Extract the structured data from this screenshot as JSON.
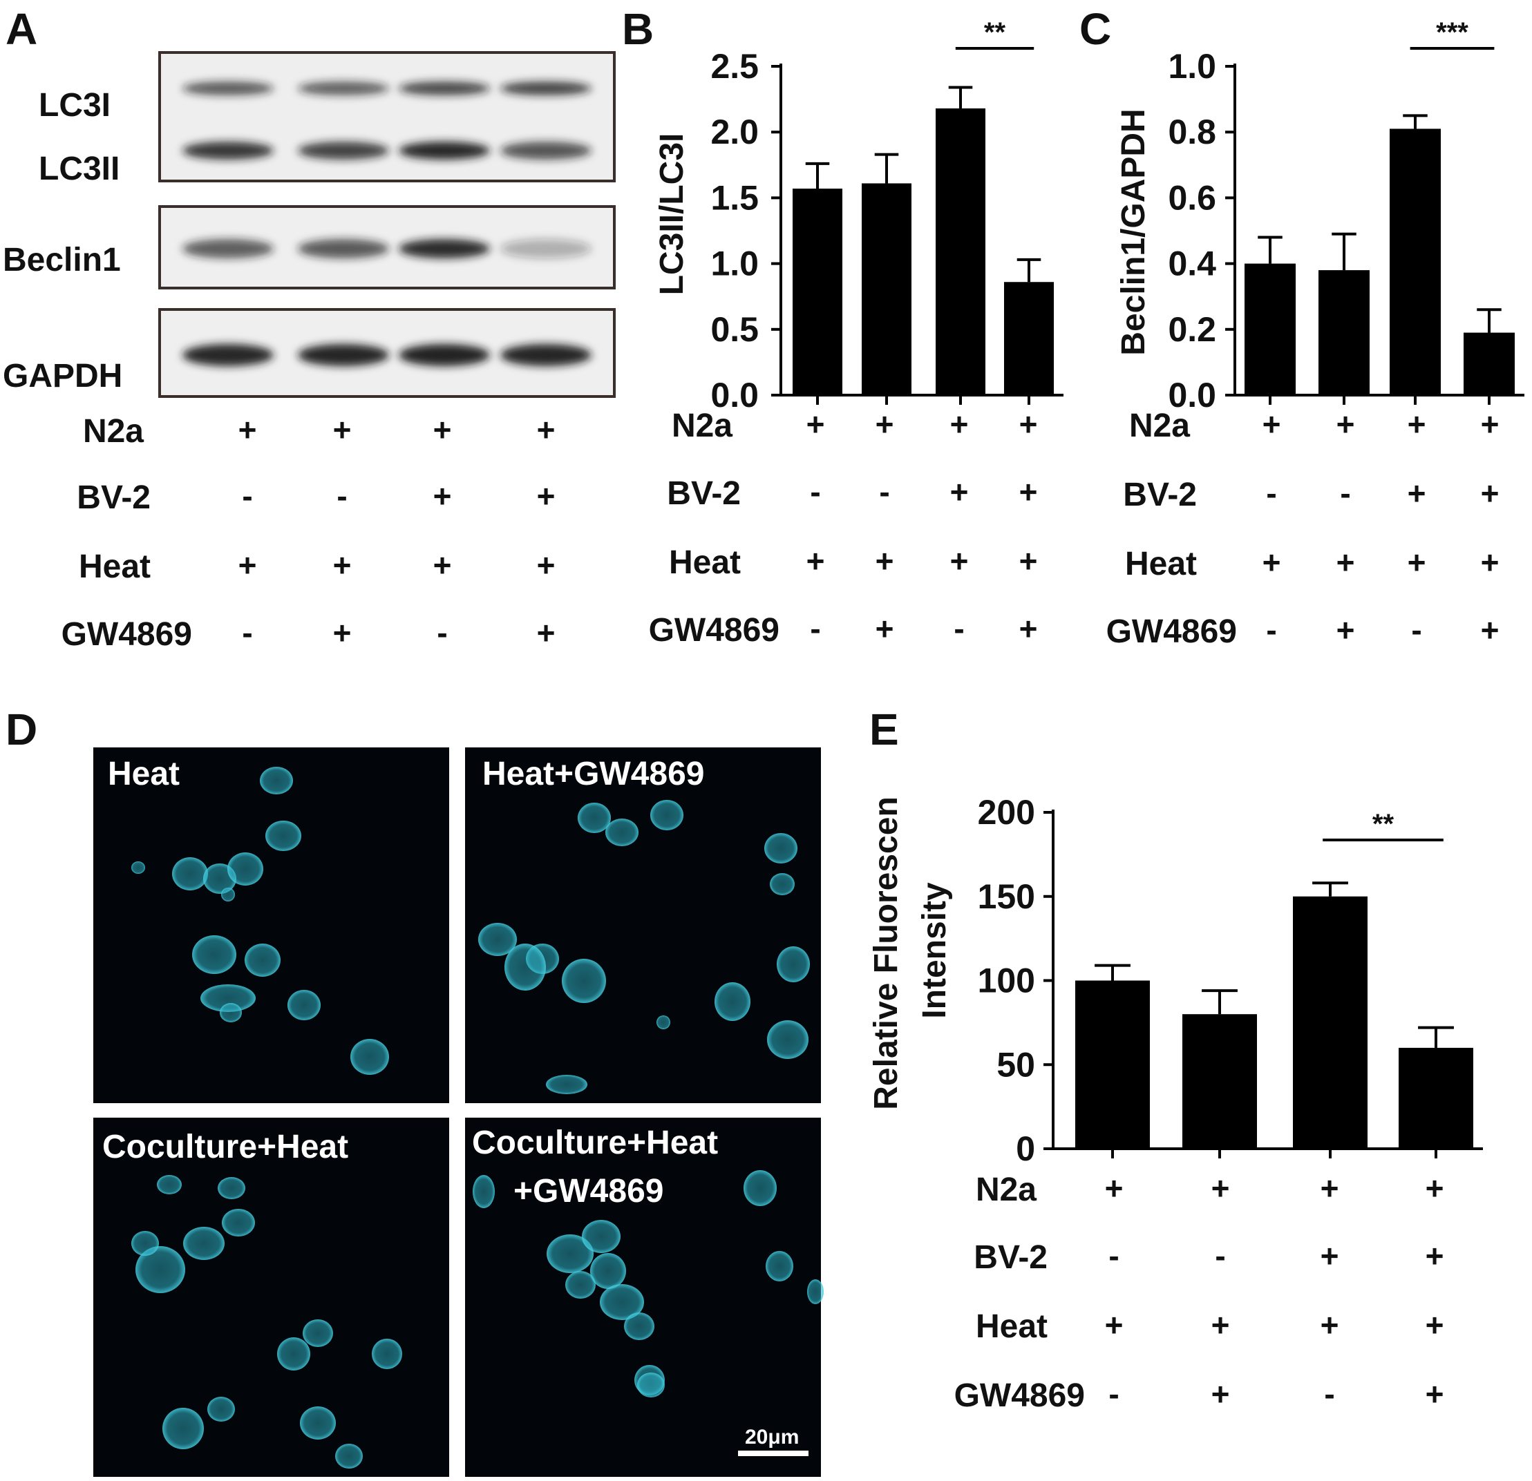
{
  "panels": {
    "A": {
      "label": "A",
      "blot_labels": [
        "LC3I",
        "LC3II",
        "Beclin1",
        "GAPDH"
      ],
      "band_intensity": {
        "LC3I": [
          0.7,
          0.68,
          0.78,
          0.8
        ],
        "LC3II": [
          0.85,
          0.8,
          0.95,
          0.72
        ],
        "Beclin1": [
          0.68,
          0.7,
          0.9,
          0.3
        ],
        "GAPDH": [
          0.95,
          0.93,
          0.94,
          0.93
        ]
      }
    },
    "B": {
      "label": "B"
    },
    "C": {
      "label": "C"
    },
    "D": {
      "label": "D",
      "images": [
        {
          "title": "Heat"
        },
        {
          "title": "Heat+GW4869"
        },
        {
          "title": "Coculture+Heat"
        },
        {
          "title": "Coculture+Heat",
          "title2": "+GW4869"
        }
      ],
      "scale_bar": "20μm"
    },
    "E": {
      "label": "E"
    }
  },
  "conditions": [
    {
      "name": "N2a",
      "signs": [
        "+",
        "+",
        "+",
        "+"
      ]
    },
    {
      "name": "BV-2",
      "signs": [
        "-",
        "-",
        "+",
        "+"
      ]
    },
    {
      "name": "Heat",
      "signs": [
        "+",
        "+",
        "+",
        "+"
      ]
    },
    {
      "name": "GW4869",
      "signs": [
        "-",
        "+",
        "-",
        "+"
      ]
    }
  ],
  "colors": {
    "bar": "#000000",
    "cell": "#2fb4c8",
    "micro_bg": "#02060a"
  },
  "chart_data": [
    {
      "panel": "B",
      "type": "bar",
      "ylabel": "LC3II/LC3I",
      "ylim": [
        0,
        2.5
      ],
      "yticks": [
        "0.0",
        "0.5",
        "1.0",
        "1.5",
        "2.0",
        "2.5"
      ],
      "values": [
        1.57,
        1.61,
        2.18,
        0.86
      ],
      "errors": [
        0.19,
        0.22,
        0.16,
        0.17
      ],
      "significance": {
        "from": 2,
        "to": 3,
        "label": "**"
      }
    },
    {
      "panel": "C",
      "type": "bar",
      "ylabel": "Beclin1/GAPDH",
      "ylim": [
        0,
        1.0
      ],
      "yticks": [
        "0.0",
        "0.2",
        "0.4",
        "0.6",
        "0.8",
        "1.0"
      ],
      "values": [
        0.4,
        0.38,
        0.81,
        0.19
      ],
      "errors": [
        0.08,
        0.11,
        0.04,
        0.07
      ],
      "significance": {
        "from": 2,
        "to": 3,
        "label": "***"
      }
    },
    {
      "panel": "E",
      "type": "bar",
      "ylabel": "Relative Fluorescen",
      "ylabel2": "Intensity",
      "ylim": [
        0,
        200
      ],
      "yticks": [
        "0",
        "50",
        "100",
        "150",
        "200"
      ],
      "values": [
        100,
        80,
        150,
        60
      ],
      "errors": [
        9,
        14,
        8,
        12
      ],
      "significance": {
        "from": 2,
        "to": 3,
        "label": "**"
      }
    }
  ]
}
